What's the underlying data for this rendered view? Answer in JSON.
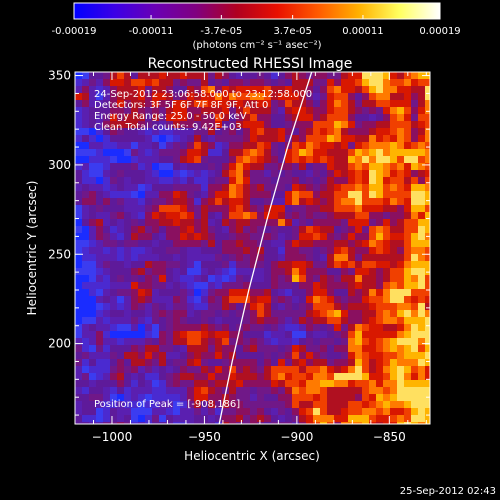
{
  "colorbar": {
    "tick_labels": [
      "-0.00019",
      "-0.00011",
      "-3.7e-05",
      "3.7e-05",
      "0.00011",
      "0.00019"
    ],
    "tick_values": [
      -0.00019,
      -0.00011,
      -3.7e-05,
      3.7e-05,
      0.00011,
      0.00019
    ],
    "range": [
      -0.00019,
      0.00019
    ],
    "unit_label": "(photons cm⁻² s⁻¹ asec⁻²)",
    "colors": [
      "#0000ff",
      "#3b00e6",
      "#6a00b4",
      "#800080",
      "#b00020",
      "#e81000",
      "#ff5a00",
      "#ffb000",
      "#ffff60",
      "#ffffff"
    ]
  },
  "chart_data": {
    "type": "heatmap",
    "title": "Reconstructed RHESSI Image",
    "xlabel": "Heliocentric X (arcsec)",
    "ylabel": "Heliocentric Y (arcsec)",
    "xlim": [
      -1020,
      -828
    ],
    "ylim": [
      155,
      352
    ],
    "x_ticks": [
      -1000,
      -950,
      -900,
      -850
    ],
    "y_ticks": [
      200,
      250,
      300,
      350
    ],
    "x_tick_labels": [
      "−1000",
      "−950",
      "−900",
      "−850"
    ],
    "y_tick_labels": [
      "200",
      "250",
      "300",
      "350"
    ],
    "limb_curve": [
      [
        -942,
        155
      ],
      [
        -935,
        190
      ],
      [
        -926,
        230
      ],
      [
        -916,
        270
      ],
      [
        -905,
        310
      ],
      [
        -892,
        352
      ]
    ],
    "annotations": [
      "24-Sep-2012 23:06:58.000 to 23:12:58.000",
      "Detectors: 3F 5F 6F 7F 8F 9F, Att 0",
      "Energy Range: 25.0 - 50.0 keV",
      "Clean    Total counts: 9.42E+03"
    ],
    "peak_label": "Position of Peak = [-908,186]"
  },
  "footer": {
    "timestamp": "25-Sep-2012 02:43"
  }
}
